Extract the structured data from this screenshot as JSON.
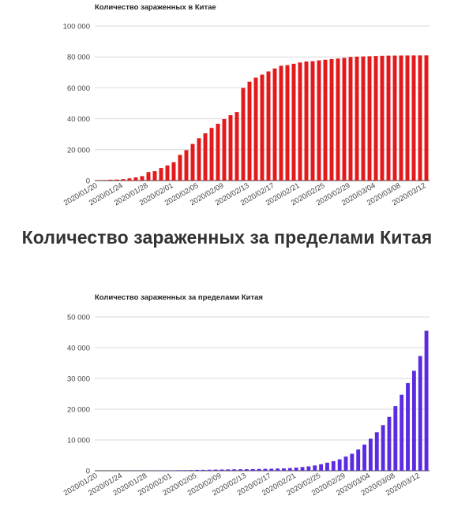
{
  "heading": "Количество зараженных за пределами Китая",
  "chart_data": [
    {
      "type": "bar",
      "title": "Количество зараженных в Китае",
      "color": "#e31a1c",
      "ylim": [
        0,
        100000
      ],
      "yticks": [
        "0",
        "20 000",
        "40 000",
        "60 000",
        "80 000",
        "100 000"
      ],
      "ytick_values": [
        0,
        20000,
        40000,
        60000,
        80000,
        100000
      ],
      "xtick_labels": [
        "2020/01/20",
        "2020/01/24",
        "2020/01/28",
        "2020/02/01",
        "2020/02/05",
        "2020/02/09",
        "2020/02/13",
        "2020/02/17",
        "2020/02/21",
        "2020/02/25",
        "2020/02/29",
        "2020/03/04",
        "2020/03/08",
        "2020/03/12"
      ],
      "xtick_indices": [
        0,
        4,
        8,
        12,
        16,
        20,
        24,
        28,
        32,
        36,
        40,
        44,
        48,
        52
      ],
      "grid": true,
      "values": [
        278,
        326,
        547,
        639,
        916,
        1399,
        2062,
        2863,
        5494,
        6070,
        8124,
        9783,
        11871,
        16607,
        19693,
        23680,
        27409,
        30553,
        34075,
        36778,
        39790,
        42306,
        44327,
        59907,
        63950,
        66576,
        68584,
        70635,
        72528,
        74279,
        74675,
        75569,
        76392,
        77042,
        77262,
        77780,
        78190,
        78630,
        78959,
        79389,
        79968,
        80174,
        80302,
        80422,
        80565,
        80710,
        80813,
        80859,
        80904,
        80924,
        80955,
        80981,
        80991
      ]
    },
    {
      "type": "bar",
      "title": "Количество зараженных за пределами Китая",
      "color": "#5b2be0",
      "ylim": [
        0,
        50000
      ],
      "yticks": [
        "0",
        "10 000",
        "20 000",
        "30 000",
        "40 000",
        "50 000"
      ],
      "ytick_values": [
        0,
        10000,
        20000,
        30000,
        40000,
        50000
      ],
      "xtick_labels": [
        "2020/01/20",
        "2020/01/24",
        "2020/01/28",
        "2020/02/01",
        "2020/02/05",
        "2020/02/09",
        "2020/02/13",
        "2020/02/17",
        "2020/02/21",
        "2020/02/25",
        "2020/02/29",
        "2020/03/04",
        "2020/03/08",
        "2020/03/12"
      ],
      "xtick_indices": [
        0,
        4,
        8,
        12,
        16,
        20,
        24,
        28,
        32,
        36,
        40,
        44,
        48,
        52
      ],
      "grid": true,
      "values": [
        4,
        6,
        8,
        10,
        15,
        20,
        30,
        40,
        60,
        80,
        100,
        120,
        140,
        160,
        190,
        220,
        270,
        290,
        320,
        370,
        390,
        420,
        440,
        460,
        490,
        520,
        560,
        600,
        640,
        700,
        750,
        850,
        1000,
        1200,
        1400,
        1700,
        2100,
        2600,
        3100,
        3700,
        4600,
        5500,
        6900,
        8500,
        10400,
        12500,
        14800,
        17500,
        21000,
        24700,
        28500,
        32500,
        37300,
        45500
      ]
    }
  ]
}
